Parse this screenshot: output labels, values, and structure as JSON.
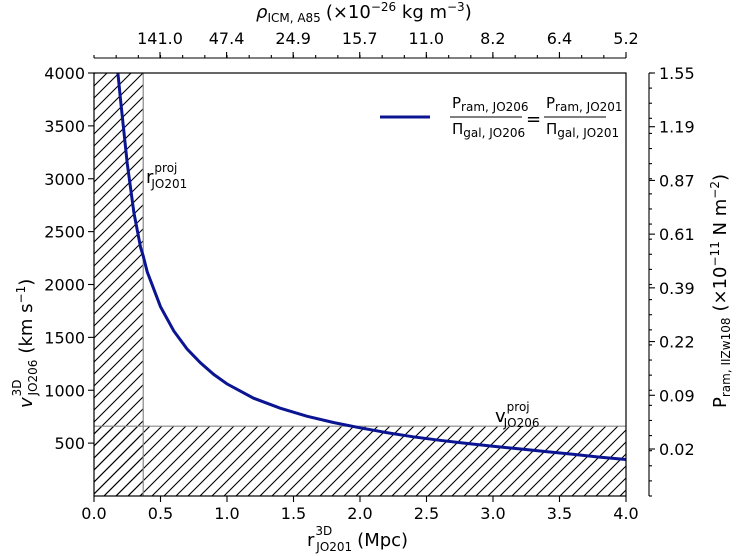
{
  "chart_data": {
    "type": "line",
    "x_label": {
      "main": "r",
      "sup": "3D",
      "sub": "JO201",
      "unit": "(Mpc)"
    },
    "y_label": {
      "main": "v",
      "sup": "3D",
      "sub": "JO206",
      "unit": "(km s",
      "unit_exp": "−1",
      "unit_end": ")"
    },
    "top_label": {
      "main": "ρ",
      "sub": "ICM, A85",
      "unit": "(×10",
      "unit_exp": "−26",
      "unit_mid": " kg m",
      "unit_exp2": "−3",
      "unit_end": ")"
    },
    "right_label": {
      "main": "P",
      "sub": "ram, IIZw108",
      "unit": "(×10",
      "unit_exp": "−11",
      "unit_mid": " N m",
      "unit_exp2": "−2",
      "unit_end": ")"
    },
    "xlim": [
      0.0,
      4.0
    ],
    "ylim": [
      0,
      4000
    ],
    "x_ticks": [
      "0.0",
      "0.5",
      "1.0",
      "1.5",
      "2.0",
      "2.5",
      "3.0",
      "3.5",
      "4.0"
    ],
    "y_ticks": [
      "500",
      "1000",
      "1500",
      "2000",
      "2500",
      "3000",
      "3500",
      "4000"
    ],
    "top_ticks": [
      "141.0",
      "47.4",
      "24.9",
      "15.7",
      "11.0",
      "8.2",
      "6.4",
      "5.2"
    ],
    "right_ticks": [
      "0.02",
      "0.09",
      "0.22",
      "0.39",
      "0.61",
      "0.87",
      "1.19",
      "1.55"
    ],
    "series": [
      {
        "color": "#0b1591",
        "x": [
          0.18,
          0.2,
          0.25,
          0.3,
          0.35,
          0.37,
          0.4,
          0.5,
          0.6,
          0.7,
          0.8,
          0.9,
          1.0,
          1.2,
          1.4,
          1.6,
          1.8,
          2.0,
          2.2,
          2.4,
          2.6,
          2.8,
          3.0,
          3.2,
          3.4,
          3.6,
          3.8,
          4.0
        ],
        "y": [
          4000,
          3740,
          3140,
          2680,
          2350,
          2270,
          2120,
          1790,
          1560,
          1390,
          1260,
          1150,
          1060,
          925,
          830,
          755,
          695,
          645,
          600,
          560,
          527,
          497,
          470,
          445,
          420,
          395,
          368,
          345
        ]
      }
    ],
    "hatch_regions": [
      {
        "x": [
          0.0,
          0.37
        ],
        "y": [
          0,
          4000
        ]
      },
      {
        "x": [
          0.0,
          4.0
        ],
        "y": [
          0,
          660
        ]
      }
    ],
    "annotations": [
      {
        "text": "r",
        "sup": "proj",
        "sub": "JO201",
        "x": 0.38,
        "y": 2950
      },
      {
        "text": "v",
        "sup": "proj",
        "sub": "JO206",
        "x": 3.0,
        "y": 660
      }
    ],
    "legend": {
      "position": "top-right",
      "num_left": "P",
      "num_left_sub": "ram, JO206",
      "den_left": "Π",
      "den_left_sub": "gal, JO206",
      "equals": "=",
      "num_right": "P",
      "num_right_sub": "ram, JO201",
      "den_right": "Π",
      "den_right_sub": "gal, JO201"
    }
  }
}
